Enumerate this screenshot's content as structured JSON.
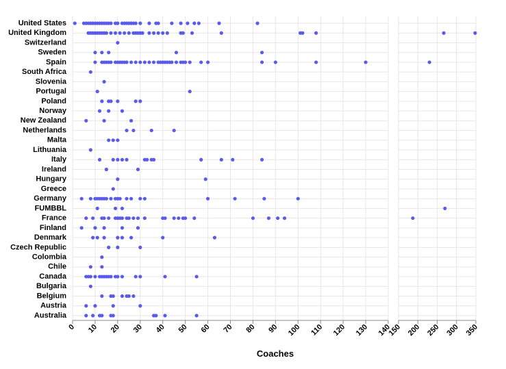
{
  "chart_data": {
    "type": "strip",
    "x_label": "Coaches",
    "color": "#5b5bea",
    "categories": [
      "United States",
      "United Kingdom",
      "Switzerland",
      "Sweden",
      "Spain",
      "South Africa",
      "Slovenia",
      "Portugal",
      "Poland",
      "Norway",
      "New Zealand",
      "Netherlands",
      "Malta",
      "Lithuania",
      "Italy",
      "Ireland",
      "Hungary",
      "Greece",
      "Germany",
      "FUMBBL",
      "France",
      "Finland",
      "Denmark",
      "Czech Republic",
      "Colombia",
      "Chile",
      "Canada",
      "Bulgaria",
      "Belgium",
      "Austria",
      "Australia"
    ],
    "values": [
      [
        1,
        5,
        6,
        7,
        8,
        9,
        10,
        11,
        12,
        13,
        14,
        15,
        16,
        17,
        19,
        20,
        22,
        23,
        24,
        25,
        26,
        27,
        28,
        30,
        34,
        37,
        38,
        44,
        48,
        51,
        54,
        56,
        65,
        82
      ],
      [
        7,
        8,
        9,
        10,
        11,
        12,
        13,
        14,
        15,
        17,
        19,
        21,
        23,
        25,
        27,
        28,
        29,
        30,
        31,
        34,
        36,
        38,
        40,
        42,
        48,
        49,
        53,
        66,
        101,
        102,
        108,
        267,
        348
      ],
      [
        20
      ],
      [
        10,
        13,
        16,
        46,
        84
      ],
      [
        10,
        13,
        14,
        15,
        16,
        17,
        19,
        20,
        21,
        22,
        23,
        24,
        26,
        28,
        30,
        32,
        34,
        36,
        38,
        39,
        40,
        41,
        42,
        43,
        44,
        46,
        48,
        49,
        50,
        52,
        57,
        60,
        84,
        90,
        108,
        130,
        230
      ],
      [
        8
      ],
      [
        14
      ],
      [
        11,
        52
      ],
      [
        13,
        16,
        17,
        20,
        28,
        30
      ],
      [
        12,
        16,
        22
      ],
      [
        6,
        14,
        26
      ],
      [
        24,
        27,
        35,
        45
      ],
      [
        16,
        18,
        20
      ],
      [
        8
      ],
      [
        12,
        18,
        20,
        22,
        24,
        32,
        33,
        35,
        36,
        57,
        66,
        71,
        84
      ],
      [
        15,
        29
      ],
      [
        20,
        59
      ],
      [
        18
      ],
      [
        4,
        8,
        10,
        11,
        12,
        13,
        14,
        15,
        17,
        19,
        20,
        21,
        24,
        26,
        30,
        32,
        60,
        72,
        85,
        100
      ],
      [
        11,
        19,
        22,
        270
      ],
      [
        6,
        9,
        13,
        14,
        16,
        19,
        20,
        21,
        22,
        24,
        25,
        27,
        29,
        32,
        40,
        41,
        45,
        47,
        49,
        50,
        54,
        80,
        87,
        91,
        94,
        187
      ],
      [
        4,
        10,
        14,
        22,
        29
      ],
      [
        9,
        11,
        14,
        20,
        22,
        26,
        40,
        63
      ],
      [
        16,
        20,
        30
      ],
      [
        13
      ],
      [
        8,
        13
      ],
      [
        6,
        7,
        8,
        10,
        12,
        13,
        14,
        15,
        16,
        17,
        19,
        20,
        22,
        28,
        30,
        41,
        55
      ],
      [
        8
      ],
      [
        13,
        17,
        18,
        22,
        24,
        25,
        27
      ],
      [
        6,
        10,
        18,
        30
      ],
      [
        6,
        9,
        12,
        13,
        17,
        18,
        36,
        37,
        41,
        55
      ]
    ],
    "xlim": [
      0,
      140
    ],
    "xticks": [
      0,
      10,
      20,
      30,
      40,
      50,
      60,
      70,
      80,
      90,
      100,
      110,
      120,
      130,
      140
    ],
    "x2lim": [
      150,
      350
    ],
    "x2ticks": [
      150,
      200,
      250,
      300,
      350
    ],
    "grid": true
  }
}
